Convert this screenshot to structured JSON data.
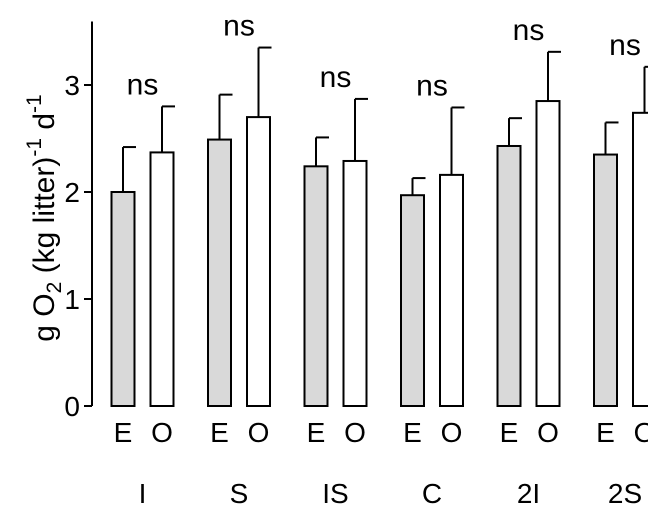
{
  "chart_data": {
    "type": "bar",
    "title": "",
    "ylabel": {
      "pre": "g O",
      "sub": "2",
      "mid": " (kg litter)",
      "sup1": "-1",
      "post": " d",
      "sup2": "-1"
    },
    "xlabel": "",
    "ylim": [
      0,
      3.5
    ],
    "yticks": [
      0,
      1,
      2,
      3
    ],
    "grid": false,
    "categories": [
      "I",
      "S",
      "IS",
      "C",
      "2I",
      "2S"
    ],
    "sublabels": [
      "E",
      "O"
    ],
    "series": [
      {
        "values": [
          2.0,
          2.49,
          2.24,
          1.97,
          2.43,
          2.35
        ],
        "errors": [
          0.42,
          0.42,
          0.27,
          0.16,
          0.26,
          0.3
        ],
        "color": "#d9d9d9"
      },
      {
        "values": [
          2.37,
          2.7,
          2.29,
          2.16,
          2.85,
          2.74
        ],
        "errors": [
          0.43,
          0.65,
          0.58,
          0.63,
          0.46,
          0.43
        ],
        "color": "#ffffff"
      }
    ],
    "annotations": [
      "ns",
      "ns",
      "ns",
      "ns",
      "ns",
      "ns"
    ]
  }
}
